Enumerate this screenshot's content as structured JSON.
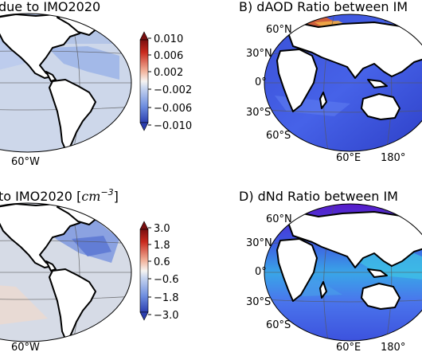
{
  "panels": {
    "a": {
      "title_visible": "due to IMO2020",
      "lon_label": "60°W",
      "colorbar": {
        "ticks": [
          "0.010",
          "0.006",
          "0.002",
          "−0.002",
          "−0.006",
          "−0.010"
        ],
        "colors": [
          "#2c3fb0",
          "#6f8fe0",
          "#c9d6ef",
          "#f7f4f2",
          "#f2b39c",
          "#c92a1e",
          "#7a0f10"
        ]
      }
    },
    "b": {
      "title_visible": "B) dAOD Ratio between IM",
      "lat_labels": [
        "60°N",
        "30°N",
        "0°",
        "30°S",
        "60°S"
      ],
      "lon_labels": [
        "60°E",
        "180°"
      ]
    },
    "c": {
      "title_visible": "to IMO2020 [",
      "title_math": "cm",
      "title_exp": "−3",
      "title_close": "]",
      "lon_label": "60°W",
      "colorbar": {
        "ticks": [
          "3.0",
          "1.8",
          "0.6",
          "−0.6",
          "−1.8",
          "−3.0"
        ],
        "colors": [
          "#2c3fb0",
          "#6f8fe0",
          "#c9d6ef",
          "#f7f4f2",
          "#f2b39c",
          "#c92a1e",
          "#7a0f10"
        ]
      }
    },
    "d": {
      "title_visible": "D) dNd Ratio between IM",
      "lat_labels": [
        "60°N",
        "30°N",
        "0°",
        "30°S",
        "60°S"
      ],
      "lon_labels": [
        "60°E",
        "180°"
      ]
    }
  }
}
